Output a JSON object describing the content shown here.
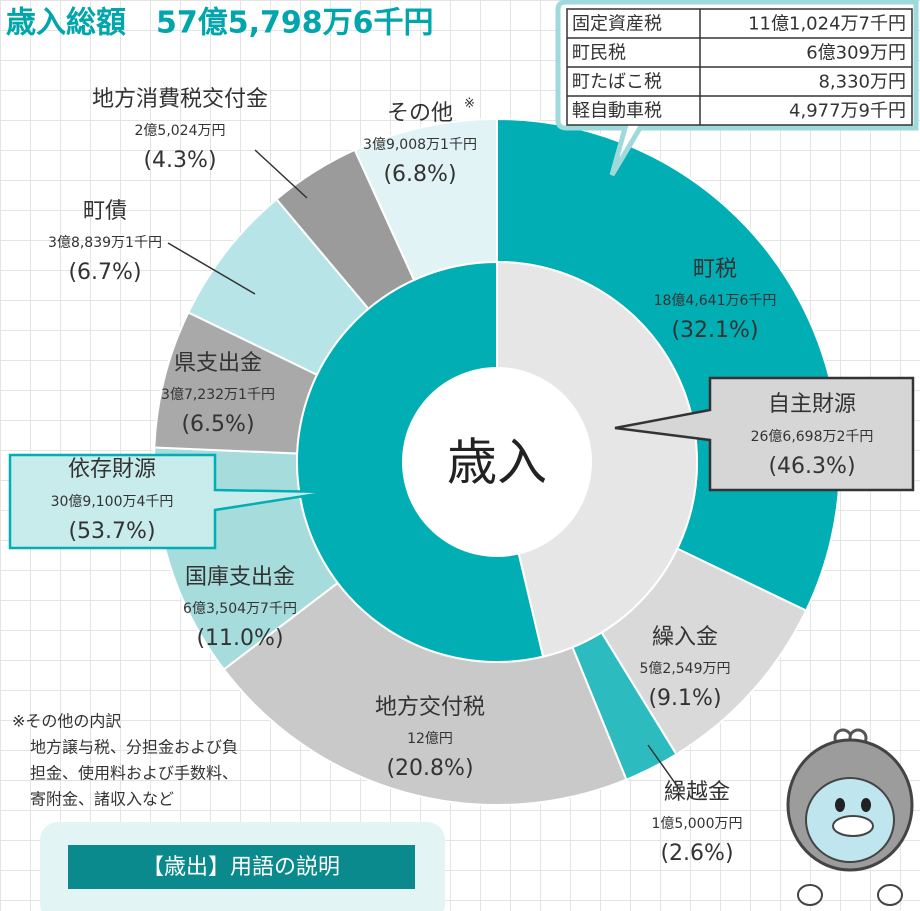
{
  "title": "歳入総額　57億5,798万6千円",
  "tax_table": {
    "rows": [
      [
        "固定資産税",
        "11億1,024万7千円"
      ],
      [
        "町民税",
        "6億309万円"
      ],
      [
        "町たばこ税",
        "8,330万円"
      ],
      [
        "軽自動車税",
        "4,977万9千円"
      ]
    ]
  },
  "chart_data": {
    "type": "donut",
    "center_label": "歳入",
    "outer": {
      "categories": [
        "町税",
        "繰入金",
        "繰越金",
        "地方交付税",
        "国庫支出金",
        "県支出金",
        "町債",
        "地方消費税交付金",
        "その他"
      ],
      "note_mark": "※",
      "amounts": [
        "18億4,641万6千円",
        "5億2,549万円",
        "1億5,000万円",
        "12億円",
        "6億3,504万7千円",
        "3億7,232万1千円",
        "3億8,839万1千円",
        "2億5,024万円",
        "3億9,008万1千円"
      ],
      "values": [
        32.1,
        9.1,
        2.6,
        20.8,
        11.0,
        6.5,
        6.7,
        4.3,
        6.8
      ],
      "value_labels": [
        "(32.1%)",
        "(9.1%)",
        "(2.6%)",
        "(20.8%)",
        "(11.0%)",
        "(6.5%)",
        "(6.7%)",
        "(4.3%)",
        "(6.8%)"
      ],
      "colors": [
        "#00aeb4",
        "#d9d9d9",
        "#2cbcc0",
        "#c9c9c9",
        "#a7dcdc",
        "#a9a9a9",
        "#b7e4e6",
        "#9b9b9b",
        "#e1f3f4"
      ]
    },
    "inner": {
      "categories": [
        "自主財源",
        "依存財源"
      ],
      "amounts": [
        "26億6,698万2千円",
        "30億9,100万4千円"
      ],
      "values": [
        46.3,
        53.7
      ],
      "value_labels": [
        "(46.3%)",
        "(53.7%)"
      ],
      "colors": [
        "#e6e6e6",
        "#00aeb4"
      ]
    }
  },
  "note": {
    "lines": [
      "※その他の内訳",
      "地方譲与税、分担金および負",
      "担金、使用料および手数料、",
      "寄附金、諸収入など"
    ]
  },
  "term_box": {
    "title": "【歳出】用語の説明"
  }
}
